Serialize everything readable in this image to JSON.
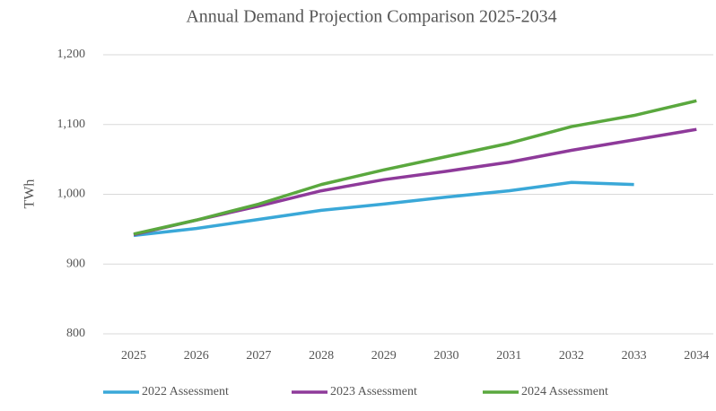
{
  "chart_data": {
    "type": "line",
    "title": "Annual Demand Projection Comparison 2025-2034",
    "y_label": "TWh",
    "categories": [
      "2025",
      "2026",
      "2027",
      "2028",
      "2029",
      "2030",
      "2031",
      "2032",
      "2033",
      "2034"
    ],
    "series": [
      {
        "name": "2022 Assessment",
        "color": "#3aa8d8",
        "values": [
          941,
          951,
          964,
          977,
          986,
          996,
          1005,
          1017,
          1014,
          null
        ]
      },
      {
        "name": "2023 Assessment",
        "color": "#8e3a9a",
        "values": [
          942,
          963,
          983,
          1005,
          1021,
          1033,
          1046,
          1063,
          1078,
          1093
        ]
      },
      {
        "name": "2024 Assessment",
        "color": "#5aa83e",
        "values": [
          943,
          963,
          986,
          1014,
          1035,
          1054,
          1073,
          1097,
          1113,
          1134
        ]
      }
    ],
    "ylim": [
      800,
      1200
    ],
    "yticks": [
      800,
      900,
      {
        "value": 1000,
        "label": "1,000"
      },
      {
        "value": 1100,
        "label": "1,100"
      },
      {
        "value": 1200,
        "label": "1,200"
      }
    ],
    "grid": true,
    "legend": "bottom"
  }
}
